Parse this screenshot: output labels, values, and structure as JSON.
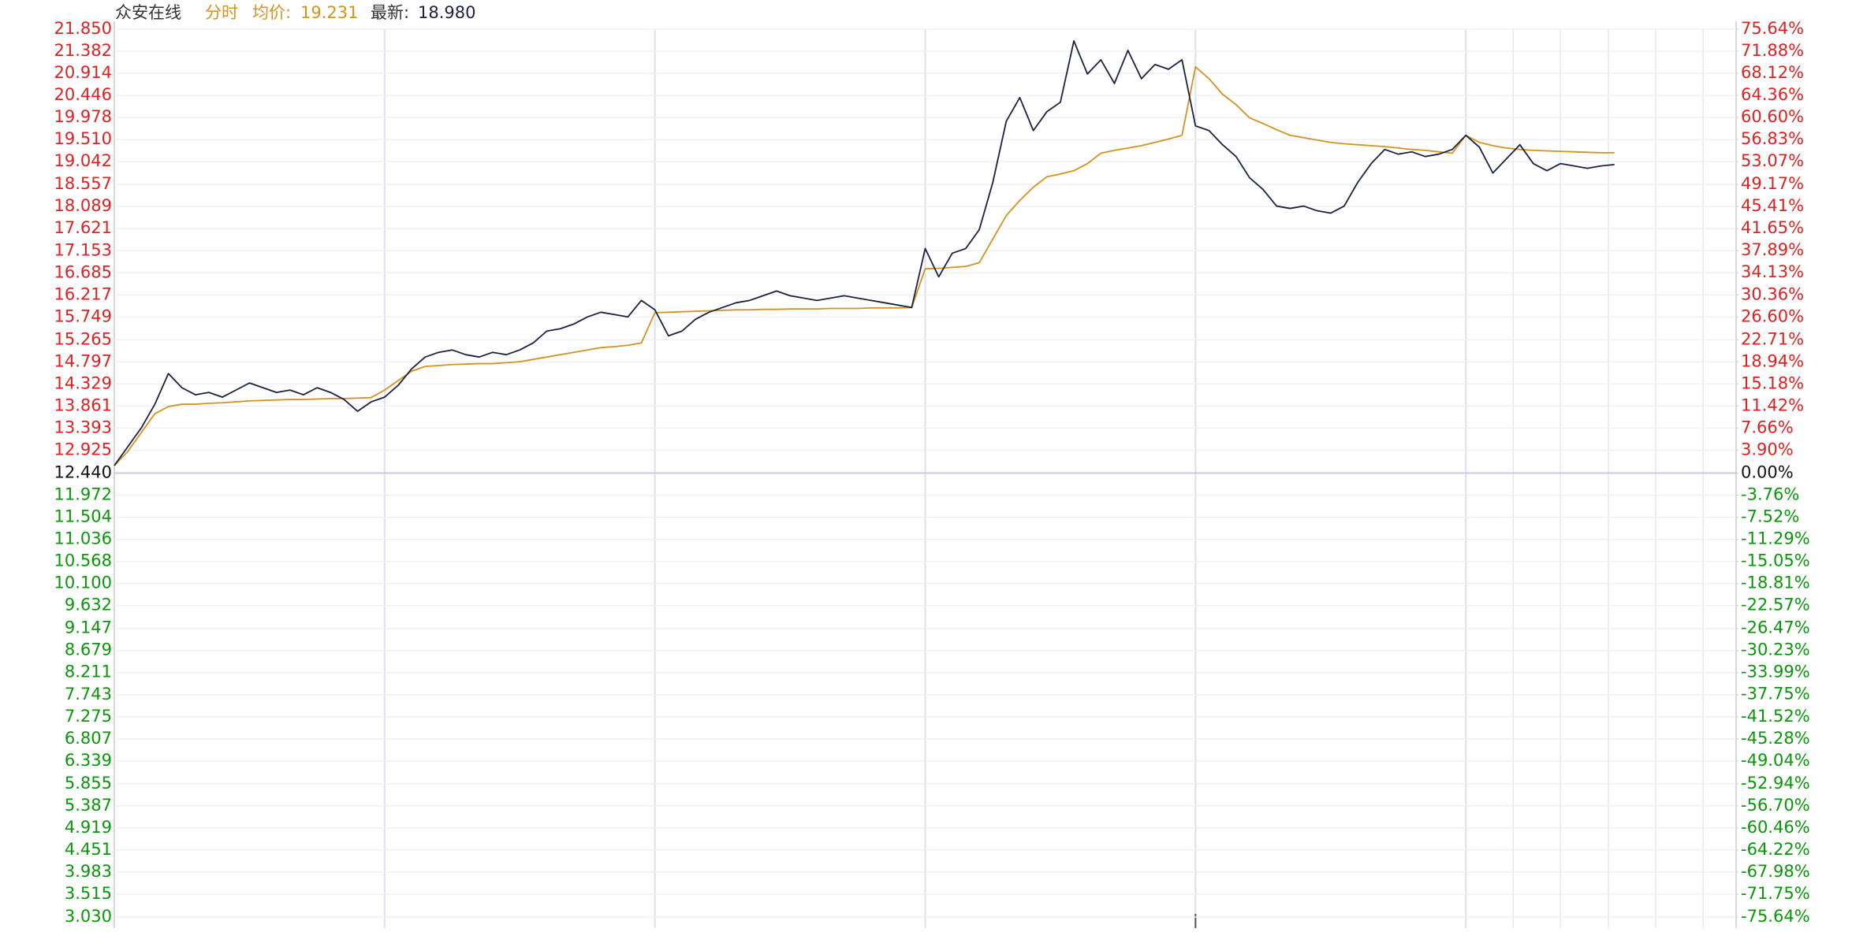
{
  "chart_data": {
    "type": "line",
    "title": "众安在线",
    "mode": "分时",
    "avg_label": "均价:",
    "avg_value": "19.231",
    "last_label": "最新:",
    "last_value": "18.980",
    "categories": [
      null,
      null,
      null,
      null,
      null,
      null,
      null,
      null,
      null,
      null,
      null,
      null,
      null,
      null,
      null,
      null,
      null,
      null,
      null,
      null,
      null,
      null,
      null,
      null,
      null,
      null,
      null,
      null,
      null,
      null,
      null,
      null,
      null,
      null,
      null,
      null,
      null,
      null,
      null,
      null,
      null,
      null,
      null,
      null,
      null,
      null,
      null,
      null,
      null,
      null,
      null,
      null,
      null,
      null,
      null,
      null,
      null,
      null,
      null,
      null,
      null,
      null,
      null,
      null,
      null,
      null,
      null,
      null,
      null,
      null,
      null,
      null,
      null,
      null,
      null,
      null,
      null,
      null,
      null,
      null,
      null,
      null,
      null,
      null,
      null,
      null,
      null,
      null,
      null,
      null,
      null,
      null,
      null,
      null,
      null,
      null,
      null,
      null,
      null,
      null,
      null,
      null,
      null,
      null,
      null,
      null,
      null,
      null,
      null,
      null,
      null,
      null,
      null,
      null,
      null,
      null,
      null,
      null,
      null,
      null
    ],
    "series": [
      {
        "name": "price",
        "color": "#1c2140",
        "values": [
          12.6,
          13.0,
          13.4,
          13.9,
          14.55,
          14.25,
          14.1,
          14.15,
          14.05,
          14.2,
          14.35,
          14.25,
          14.15,
          14.2,
          14.1,
          14.25,
          14.15,
          14.0,
          13.75,
          13.95,
          14.05,
          14.3,
          14.65,
          14.9,
          15.0,
          15.05,
          14.95,
          14.9,
          15.0,
          14.95,
          15.05,
          15.2,
          15.45,
          15.5,
          15.6,
          15.75,
          15.85,
          15.8,
          15.75,
          16.1,
          15.9,
          15.35,
          15.45,
          15.7,
          15.85,
          15.95,
          16.05,
          16.1,
          16.2,
          16.3,
          16.2,
          16.15,
          16.1,
          16.15,
          16.2,
          16.15,
          16.1,
          16.05,
          16.0,
          15.95,
          17.2,
          16.6,
          17.1,
          17.2,
          17.6,
          18.6,
          19.9,
          20.4,
          19.7,
          20.1,
          20.3,
          21.6,
          20.9,
          21.2,
          20.7,
          21.4,
          20.8,
          21.1,
          21.0,
          21.2,
          19.8,
          19.7,
          19.4,
          19.15,
          18.7,
          18.45,
          18.1,
          18.05,
          18.1,
          18.0,
          17.95,
          18.1,
          18.6,
          19.0,
          19.3,
          19.2,
          19.25,
          19.15,
          19.2,
          19.3,
          19.6,
          19.35,
          18.8,
          19.1,
          19.4,
          19.0,
          18.85,
          19.0,
          18.95,
          18.9,
          18.95,
          18.98,
          null,
          null,
          null,
          null,
          null,
          null,
          null,
          null
        ]
      },
      {
        "name": "average",
        "color": "#d4921f",
        "values": [
          12.6,
          12.9,
          13.3,
          13.7,
          13.85,
          13.9,
          13.9,
          13.92,
          13.93,
          13.95,
          13.97,
          13.98,
          13.99,
          14.0,
          14.0,
          14.01,
          14.02,
          14.02,
          14.03,
          14.04,
          14.2,
          14.4,
          14.6,
          14.7,
          14.72,
          14.74,
          14.75,
          14.76,
          14.76,
          14.78,
          14.8,
          14.85,
          14.9,
          14.95,
          15.0,
          15.05,
          15.1,
          15.12,
          15.15,
          15.2,
          15.84,
          15.85,
          15.86,
          15.87,
          15.88,
          15.89,
          15.9,
          15.9,
          15.91,
          15.91,
          15.92,
          15.92,
          15.92,
          15.93,
          15.93,
          15.93,
          15.94,
          15.94,
          15.94,
          15.95,
          16.77,
          16.78,
          16.8,
          16.82,
          16.9,
          17.4,
          17.9,
          18.22,
          18.5,
          18.72,
          18.78,
          18.85,
          19.0,
          19.22,
          19.28,
          19.33,
          19.38,
          19.45,
          19.52,
          19.6,
          21.05,
          20.8,
          20.47,
          20.25,
          19.97,
          19.85,
          19.72,
          19.6,
          19.55,
          19.5,
          19.45,
          19.42,
          19.4,
          19.38,
          19.36,
          19.33,
          19.3,
          19.28,
          19.25,
          19.22,
          19.6,
          19.45,
          19.38,
          19.33,
          19.3,
          19.28,
          19.27,
          19.26,
          19.25,
          19.24,
          19.23,
          19.231,
          null,
          null,
          null,
          null,
          null,
          null,
          null,
          null
        ]
      }
    ],
    "ylim": [
      3.03,
      21.85
    ],
    "y2lim": [
      -75.64,
      75.64
    ],
    "grid": true,
    "up_color": "#e02020",
    "down_color": "#0a960a",
    "flat_color": "#111111",
    "yticks": [
      {
        "value": 21.85,
        "label": "21.850"
      },
      {
        "value": 21.382,
        "label": "21.382"
      },
      {
        "value": 20.914,
        "label": "20.914"
      },
      {
        "value": 20.446,
        "label": "20.446"
      },
      {
        "value": 19.978,
        "label": "19.978"
      },
      {
        "value": 19.51,
        "label": "19.510"
      },
      {
        "value": 19.042,
        "label": "19.042"
      },
      {
        "value": 18.557,
        "label": "18.557"
      },
      {
        "value": 18.089,
        "label": "18.089"
      },
      {
        "value": 17.621,
        "label": "17.621"
      },
      {
        "value": 17.153,
        "label": "17.153"
      },
      {
        "value": 16.685,
        "label": "16.685"
      },
      {
        "value": 16.217,
        "label": "16.217"
      },
      {
        "value": 15.749,
        "label": "15.749"
      },
      {
        "value": 15.265,
        "label": "15.265"
      },
      {
        "value": 14.797,
        "label": "14.797"
      },
      {
        "value": 14.329,
        "label": "14.329"
      },
      {
        "value": 13.861,
        "label": "13.861"
      },
      {
        "value": 13.393,
        "label": "13.393"
      },
      {
        "value": 12.925,
        "label": "12.925"
      },
      {
        "value": 12.44,
        "label": "12.440"
      },
      {
        "value": 11.972,
        "label": "11.972"
      },
      {
        "value": 11.504,
        "label": "11.504"
      },
      {
        "value": 11.036,
        "label": "11.036"
      },
      {
        "value": 10.568,
        "label": "10.568"
      },
      {
        "value": 10.1,
        "label": "10.100"
      },
      {
        "value": 9.632,
        "label": "9.632"
      },
      {
        "value": 9.147,
        "label": "9.147"
      },
      {
        "value": 8.679,
        "label": "8.679"
      },
      {
        "value": 8.211,
        "label": "8.211"
      },
      {
        "value": 7.743,
        "label": "7.743"
      },
      {
        "value": 7.275,
        "label": "7.275"
      },
      {
        "value": 6.807,
        "label": "6.807"
      },
      {
        "value": 6.339,
        "label": "6.339"
      },
      {
        "value": 5.855,
        "label": "5.855"
      },
      {
        "value": 5.387,
        "label": "5.387"
      },
      {
        "value": 4.919,
        "label": "4.919"
      },
      {
        "value": 4.451,
        "label": "4.451"
      },
      {
        "value": 3.983,
        "label": "3.983"
      },
      {
        "value": 3.515,
        "label": "3.515"
      },
      {
        "value": 3.03,
        "label": "3.030"
      }
    ],
    "y2ticks": [
      {
        "value": 75.64,
        "label": "75.64%"
      },
      {
        "value": 71.88,
        "label": "71.88%"
      },
      {
        "value": 68.12,
        "label": "68.12%"
      },
      {
        "value": 64.36,
        "label": "64.36%"
      },
      {
        "value": 60.6,
        "label": "60.60%"
      },
      {
        "value": 56.83,
        "label": "56.83%"
      },
      {
        "value": 53.07,
        "label": "53.07%"
      },
      {
        "value": 49.17,
        "label": "49.17%"
      },
      {
        "value": 45.41,
        "label": "45.41%"
      },
      {
        "value": 41.65,
        "label": "41.65%"
      },
      {
        "value": 37.89,
        "label": "37.89%"
      },
      {
        "value": 34.13,
        "label": "34.13%"
      },
      {
        "value": 30.36,
        "label": "30.36%"
      },
      {
        "value": 26.6,
        "label": "26.60%"
      },
      {
        "value": 22.71,
        "label": "22.71%"
      },
      {
        "value": 18.94,
        "label": "18.94%"
      },
      {
        "value": 15.18,
        "label": "15.18%"
      },
      {
        "value": 11.42,
        "label": "11.42%"
      },
      {
        "value": 7.66,
        "label": "7.66%"
      },
      {
        "value": 3.9,
        "label": "3.90%"
      },
      {
        "value": 0,
        "label": "0.00%"
      },
      {
        "value": -3.76,
        "label": "-3.76%"
      },
      {
        "value": -7.52,
        "label": "-7.52%"
      },
      {
        "value": -11.29,
        "label": "-11.29%"
      },
      {
        "value": -15.05,
        "label": "-15.05%"
      },
      {
        "value": -18.81,
        "label": "-18.81%"
      },
      {
        "value": -22.57,
        "label": "-22.57%"
      },
      {
        "value": -26.47,
        "label": "-26.47%"
      },
      {
        "value": -30.23,
        "label": "-30.23%"
      },
      {
        "value": -33.99,
        "label": "-33.99%"
      },
      {
        "value": -37.75,
        "label": "-37.75%"
      },
      {
        "value": -41.52,
        "label": "-41.52%"
      },
      {
        "value": -45.28,
        "label": "-45.28%"
      },
      {
        "value": -49.04,
        "label": "-49.04%"
      },
      {
        "value": -52.94,
        "label": "-52.94%"
      },
      {
        "value": -56.7,
        "label": "-56.70%"
      },
      {
        "value": -60.46,
        "label": "-60.46%"
      },
      {
        "value": -64.22,
        "label": "-64.22%"
      },
      {
        "value": -67.98,
        "label": "-67.98%"
      },
      {
        "value": -71.75,
        "label": "-71.75%"
      },
      {
        "value": -75.64,
        "label": "-75.64%"
      }
    ]
  }
}
